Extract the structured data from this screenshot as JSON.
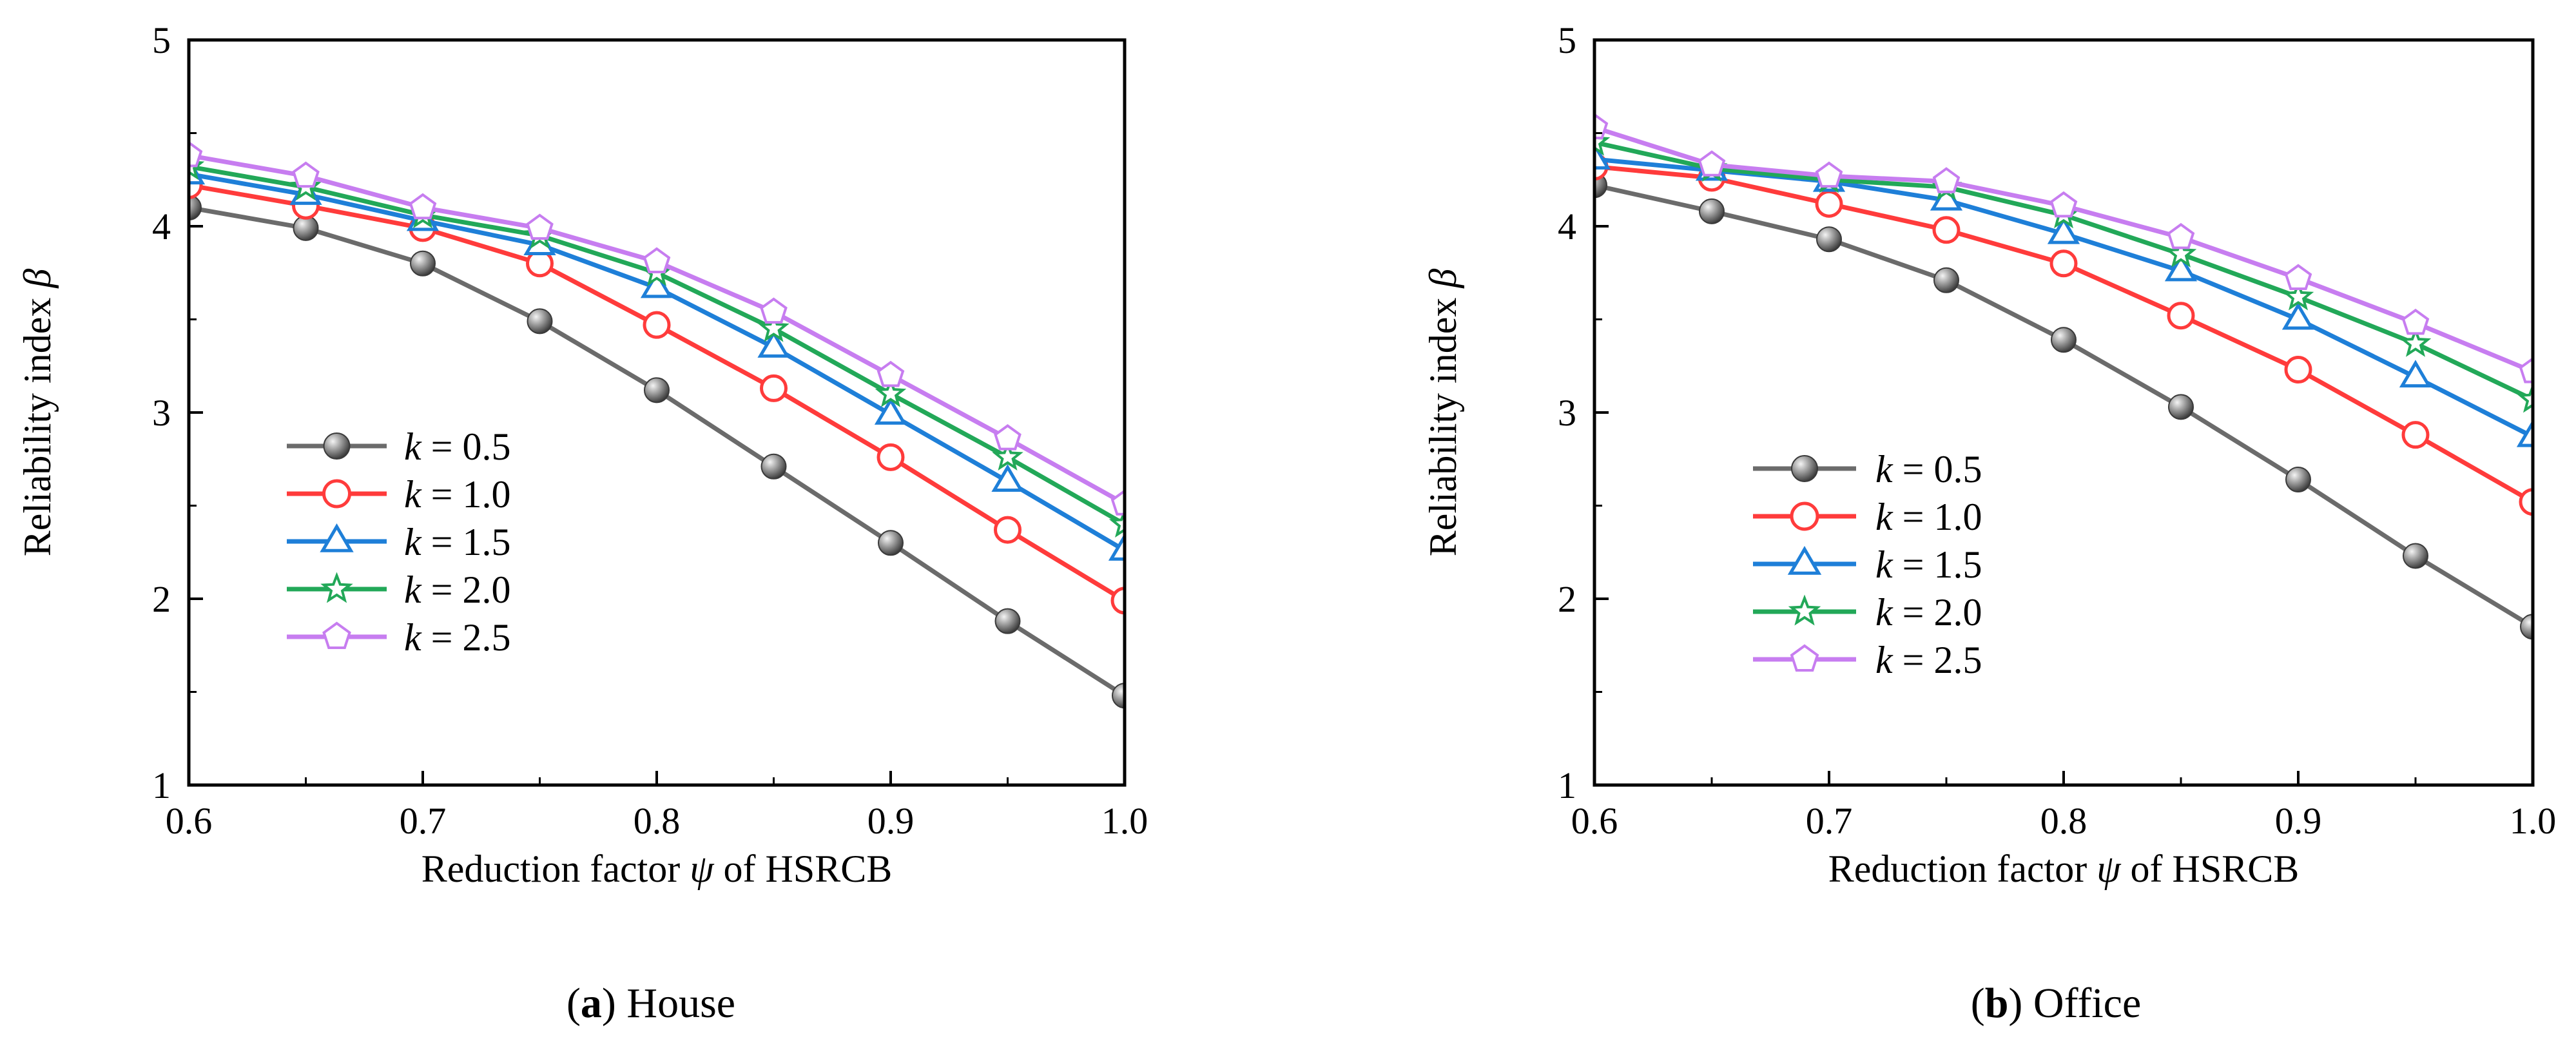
{
  "colors": {
    "k05": "#6b6b6b",
    "k10": "#ff3b3b",
    "k15": "#1e7fd8",
    "k20": "#22a858",
    "k25": "#c77df0"
  },
  "legend_prefix": "k",
  "legend_eq": " = ",
  "chart_data": [
    {
      "type": "line",
      "panel_letter": "a",
      "caption": "House",
      "x": [
        0.6,
        0.65,
        0.7,
        0.75,
        0.8,
        0.85,
        0.9,
        0.95,
        1.0
      ],
      "xticks": [
        0.6,
        0.7,
        0.8,
        0.9,
        1.0
      ],
      "xtick_labels": [
        "0.6",
        "0.7",
        "0.8",
        "0.9",
        "1.0"
      ],
      "yticks": [
        1,
        2,
        3,
        4,
        5
      ],
      "ytick_labels": [
        "1",
        "2",
        "3",
        "4",
        "5"
      ],
      "xlim": [
        0.6,
        1.0
      ],
      "ylim": [
        1,
        5
      ],
      "xlabel_pre": "Reduction factor ",
      "xlabel_sym": "ψ",
      "xlabel_post": " of HSRCB",
      "ylabel_pre": "Reliability index ",
      "ylabel_sym": "β",
      "legend_position": "lower-left",
      "series": [
        {
          "name": "k = 0.5",
          "k": "0.5",
          "marker": "sphere",
          "color": "#6b6b6b",
          "values": [
            4.1,
            3.99,
            3.8,
            3.49,
            3.12,
            2.71,
            2.3,
            1.88,
            1.48
          ]
        },
        {
          "name": "k = 1.0",
          "k": "1.0",
          "marker": "circle",
          "color": "#ff3b3b",
          "values": [
            4.22,
            4.11,
            3.99,
            3.8,
            3.47,
            3.13,
            2.76,
            2.37,
            1.99
          ]
        },
        {
          "name": "k = 1.5",
          "k": "1.5",
          "marker": "triangle",
          "color": "#1e7fd8",
          "values": [
            4.28,
            4.17,
            4.03,
            3.9,
            3.67,
            3.35,
            2.99,
            2.63,
            2.26
          ]
        },
        {
          "name": "k = 2.0",
          "k": "2.0",
          "marker": "star",
          "color": "#22a858",
          "values": [
            4.32,
            4.21,
            4.06,
            3.95,
            3.75,
            3.45,
            3.1,
            2.76,
            2.4
          ]
        },
        {
          "name": "k = 2.5",
          "k": "2.5",
          "marker": "pentagon",
          "color": "#c77df0",
          "values": [
            4.38,
            4.27,
            4.1,
            3.99,
            3.81,
            3.54,
            3.2,
            2.86,
            2.51
          ]
        }
      ]
    },
    {
      "type": "line",
      "panel_letter": "b",
      "caption": "Office",
      "x": [
        0.6,
        0.65,
        0.7,
        0.75,
        0.8,
        0.85,
        0.9,
        0.95,
        1.0
      ],
      "xticks": [
        0.6,
        0.7,
        0.8,
        0.9,
        1.0
      ],
      "xtick_labels": [
        "0.6",
        "0.7",
        "0.8",
        "0.9",
        "1.0"
      ],
      "yticks": [
        1,
        2,
        3,
        4,
        5
      ],
      "ytick_labels": [
        "1",
        "2",
        "3",
        "4",
        "5"
      ],
      "xlim": [
        0.6,
        1.0
      ],
      "ylim": [
        1,
        5
      ],
      "xlabel_pre": "Reduction factor ",
      "xlabel_sym": "ψ",
      "xlabel_post": " of HSRCB",
      "ylabel_pre": "Reliability index ",
      "ylabel_sym": "β",
      "legend_position": "lower-left",
      "series": [
        {
          "name": "k = 0.5",
          "k": "0.5",
          "marker": "sphere",
          "color": "#6b6b6b",
          "values": [
            4.22,
            4.08,
            3.93,
            3.71,
            3.39,
            3.03,
            2.64,
            2.23,
            1.85
          ]
        },
        {
          "name": "k = 1.0",
          "k": "1.0",
          "marker": "circle",
          "color": "#ff3b3b",
          "values": [
            4.32,
            4.26,
            4.12,
            3.98,
            3.8,
            3.52,
            3.23,
            2.88,
            2.52
          ]
        },
        {
          "name": "k = 1.5",
          "k": "1.5",
          "marker": "triangle",
          "color": "#1e7fd8",
          "values": [
            4.36,
            4.3,
            4.24,
            4.14,
            3.96,
            3.76,
            3.5,
            3.19,
            2.87
          ]
        },
        {
          "name": "k = 2.0",
          "k": "2.0",
          "marker": "star",
          "color": "#22a858",
          "values": [
            4.45,
            4.31,
            4.25,
            4.21,
            4.06,
            3.85,
            3.62,
            3.37,
            3.07
          ]
        },
        {
          "name": "k = 2.5",
          "k": "2.5",
          "marker": "pentagon",
          "color": "#c77df0",
          "values": [
            4.53,
            4.33,
            4.27,
            4.24,
            4.11,
            3.94,
            3.72,
            3.48,
            3.22
          ]
        }
      ]
    }
  ]
}
